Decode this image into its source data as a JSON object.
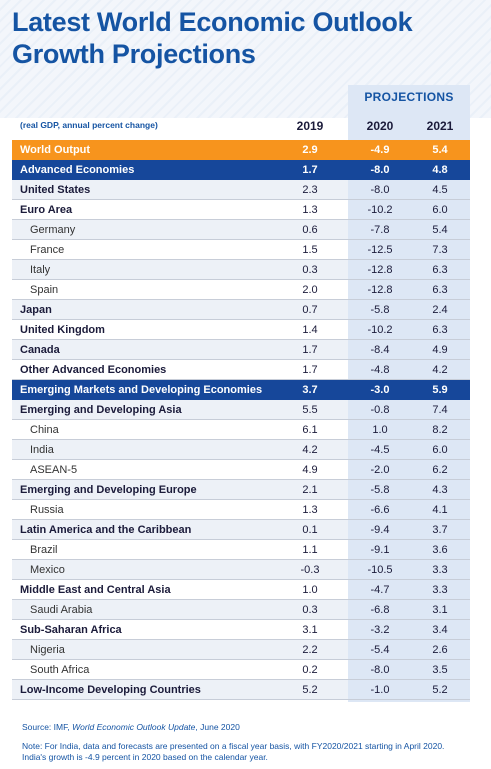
{
  "title_line1": "Latest World Economic Outlook",
  "title_line2": "Growth Projections",
  "projections_label": "PROJECTIONS",
  "header": {
    "label": "(real GDP, annual percent change)",
    "years": [
      "2019",
      "2020",
      "2021"
    ]
  },
  "rows": [
    {
      "name": "World Output",
      "v": [
        "2.9",
        "-4.9",
        "5.4"
      ],
      "style": "orange"
    },
    {
      "name": "Advanced Economies",
      "v": [
        "1.7",
        "-8.0",
        "4.8"
      ],
      "style": "blue"
    },
    {
      "name": "United States",
      "v": [
        "2.3",
        "-8.0",
        "4.5"
      ],
      "style": "bold shade"
    },
    {
      "name": "Euro Area",
      "v": [
        "1.3",
        "-10.2",
        "6.0"
      ],
      "style": "bold"
    },
    {
      "name": "Germany",
      "v": [
        "0.6",
        "-7.8",
        "5.4"
      ],
      "style": "sub shade"
    },
    {
      "name": "France",
      "v": [
        "1.5",
        "-12.5",
        "7.3"
      ],
      "style": "sub"
    },
    {
      "name": "Italy",
      "v": [
        "0.3",
        "-12.8",
        "6.3"
      ],
      "style": "sub shade"
    },
    {
      "name": "Spain",
      "v": [
        "2.0",
        "-12.8",
        "6.3"
      ],
      "style": "sub"
    },
    {
      "name": "Japan",
      "v": [
        "0.7",
        "-5.8",
        "2.4"
      ],
      "style": "bold shade"
    },
    {
      "name": "United Kingdom",
      "v": [
        "1.4",
        "-10.2",
        "6.3"
      ],
      "style": "bold"
    },
    {
      "name": "Canada",
      "v": [
        "1.7",
        "-8.4",
        "4.9"
      ],
      "style": "bold shade"
    },
    {
      "name": "Other Advanced Economies",
      "v": [
        "1.7",
        "-4.8",
        "4.2"
      ],
      "style": "bold"
    },
    {
      "name": "Emerging Markets and Developing Economies",
      "v": [
        "3.7",
        "-3.0",
        "5.9"
      ],
      "style": "blue"
    },
    {
      "name": "Emerging and Developing Asia",
      "v": [
        "5.5",
        "-0.8",
        "7.4"
      ],
      "style": "bold shade"
    },
    {
      "name": "China",
      "v": [
        "6.1",
        "1.0",
        "8.2"
      ],
      "style": "sub"
    },
    {
      "name": "India",
      "v": [
        "4.2",
        "-4.5",
        "6.0"
      ],
      "style": "sub shade"
    },
    {
      "name": "ASEAN-5",
      "v": [
        "4.9",
        "-2.0",
        "6.2"
      ],
      "style": "sub"
    },
    {
      "name": "Emerging and Developing Europe",
      "v": [
        "2.1",
        "-5.8",
        "4.3"
      ],
      "style": "bold shade"
    },
    {
      "name": "Russia",
      "v": [
        "1.3",
        "-6.6",
        "4.1"
      ],
      "style": "sub"
    },
    {
      "name": "Latin America and the Caribbean",
      "v": [
        "0.1",
        "-9.4",
        "3.7"
      ],
      "style": "bold shade"
    },
    {
      "name": "Brazil",
      "v": [
        "1.1",
        "-9.1",
        "3.6"
      ],
      "style": "sub"
    },
    {
      "name": "Mexico",
      "v": [
        "-0.3",
        "-10.5",
        "3.3"
      ],
      "style": "sub shade"
    },
    {
      "name": "Middle East and Central Asia",
      "v": [
        "1.0",
        "-4.7",
        "3.3"
      ],
      "style": "bold"
    },
    {
      "name": "Saudi Arabia",
      "v": [
        "0.3",
        "-6.8",
        "3.1"
      ],
      "style": "sub shade"
    },
    {
      "name": "Sub-Saharan Africa",
      "v": [
        "3.1",
        "-3.2",
        "3.4"
      ],
      "style": "bold"
    },
    {
      "name": "Nigeria",
      "v": [
        "2.2",
        "-5.4",
        "2.6"
      ],
      "style": "sub shade"
    },
    {
      "name": "South Africa",
      "v": [
        "0.2",
        "-8.0",
        "3.5"
      ],
      "style": "sub"
    },
    {
      "name": "Low-Income Developing Countries",
      "v": [
        "5.2",
        "-1.0",
        "5.2"
      ],
      "style": "bold shade"
    }
  ],
  "source_prefix": "Source: IMF, ",
  "source_title": "World Economic Outlook Update",
  "source_suffix": ", June 2020",
  "note": "Note: For India, data and forecasts are presented on a fiscal year basis, with FY2020/2021 starting in April 2020. India's growth is -4.9 percent in 2020 based on the calendar year.",
  "colors": {
    "title_blue": "#1554a3",
    "orange": "#f7941d",
    "navy": "#16479a",
    "proj_bg": "#dde7f5"
  }
}
